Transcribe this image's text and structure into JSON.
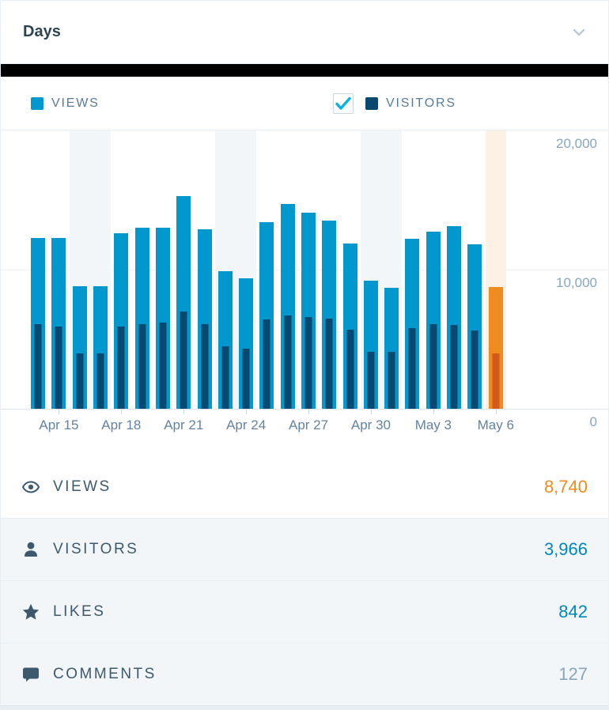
{
  "header": {
    "title": "Days"
  },
  "legend": {
    "views_label": "VIEWS",
    "visitors_label": "VISITORS",
    "visitors_checked": true
  },
  "chart_data": {
    "type": "bar",
    "title": "Days",
    "xlabel": "",
    "ylabel": "",
    "ylim": [
      0,
      20000
    ],
    "grid": true,
    "y_ticks": [
      "20,000",
      "10,000",
      "0"
    ],
    "x_tick_labels": [
      "Apr 15",
      "Apr 18",
      "Apr 21",
      "Apr 24",
      "Apr 27",
      "Apr 30",
      "May 3",
      "May 6"
    ],
    "series": [
      {
        "name": "VIEWS"
      },
      {
        "name": "VISITORS"
      }
    ],
    "days": [
      {
        "label": "Apr 14",
        "views": 12300,
        "visitors": 6100,
        "weekend": false,
        "selected": false,
        "tick": ""
      },
      {
        "label": "Apr 15",
        "views": 12300,
        "visitors": 5900,
        "weekend": false,
        "selected": false,
        "tick": "Apr 15"
      },
      {
        "label": "Apr 16",
        "views": 8800,
        "visitors": 4000,
        "weekend": true,
        "selected": false,
        "tick": ""
      },
      {
        "label": "Apr 17",
        "views": 8800,
        "visitors": 4000,
        "weekend": true,
        "selected": false,
        "tick": ""
      },
      {
        "label": "Apr 18",
        "views": 12600,
        "visitors": 5900,
        "weekend": false,
        "selected": false,
        "tick": "Apr 18"
      },
      {
        "label": "Apr 19",
        "views": 13000,
        "visitors": 6100,
        "weekend": false,
        "selected": false,
        "tick": ""
      },
      {
        "label": "Apr 20",
        "views": 13000,
        "visitors": 6200,
        "weekend": false,
        "selected": false,
        "tick": ""
      },
      {
        "label": "Apr 21",
        "views": 15300,
        "visitors": 7000,
        "weekend": false,
        "selected": false,
        "tick": "Apr 21"
      },
      {
        "label": "Apr 22",
        "views": 12900,
        "visitors": 6100,
        "weekend": false,
        "selected": false,
        "tick": ""
      },
      {
        "label": "Apr 23",
        "views": 9900,
        "visitors": 4500,
        "weekend": true,
        "selected": false,
        "tick": ""
      },
      {
        "label": "Apr 24",
        "views": 9400,
        "visitors": 4300,
        "weekend": true,
        "selected": false,
        "tick": "Apr 24"
      },
      {
        "label": "Apr 25",
        "views": 13400,
        "visitors": 6400,
        "weekend": false,
        "selected": false,
        "tick": ""
      },
      {
        "label": "Apr 26",
        "views": 14700,
        "visitors": 6700,
        "weekend": false,
        "selected": false,
        "tick": ""
      },
      {
        "label": "Apr 27",
        "views": 14100,
        "visitors": 6600,
        "weekend": false,
        "selected": false,
        "tick": "Apr 27"
      },
      {
        "label": "Apr 28",
        "views": 13500,
        "visitors": 6500,
        "weekend": false,
        "selected": false,
        "tick": ""
      },
      {
        "label": "Apr 29",
        "views": 11900,
        "visitors": 5700,
        "weekend": false,
        "selected": false,
        "tick": ""
      },
      {
        "label": "Apr 30",
        "views": 9200,
        "visitors": 4100,
        "weekend": true,
        "selected": false,
        "tick": "Apr 30"
      },
      {
        "label": "May 1",
        "views": 8700,
        "visitors": 4100,
        "weekend": true,
        "selected": false,
        "tick": ""
      },
      {
        "label": "May 2",
        "views": 12200,
        "visitors": 5800,
        "weekend": false,
        "selected": false,
        "tick": ""
      },
      {
        "label": "May 3",
        "views": 12700,
        "visitors": 6100,
        "weekend": false,
        "selected": false,
        "tick": "May 3"
      },
      {
        "label": "May 4",
        "views": 13100,
        "visitors": 6000,
        "weekend": false,
        "selected": false,
        "tick": ""
      },
      {
        "label": "May 5",
        "views": 11800,
        "visitors": 5600,
        "weekend": false,
        "selected": false,
        "tick": ""
      },
      {
        "label": "May 6",
        "views": 8740,
        "visitors": 3966,
        "weekend": false,
        "selected": true,
        "tick": "May 6"
      }
    ],
    "colors": {
      "views": "#0398cd",
      "visitors": "#07496f",
      "selected_views": "#ef8c1f",
      "selected_visitors": "#d4591f",
      "weekend_bg": "#f3f6f8",
      "selected_bg": "#fdf1e5"
    }
  },
  "summary": {
    "rows": [
      {
        "id": "views",
        "icon": "eye-icon",
        "label": "VIEWS",
        "value": "8,740",
        "value_color": "#ef8c1f",
        "active": true
      },
      {
        "id": "visitors",
        "icon": "user-icon",
        "label": "VISITORS",
        "value": "3,966",
        "value_color": "#0087be",
        "active": false
      },
      {
        "id": "likes",
        "icon": "star-icon",
        "label": "LIKES",
        "value": "842",
        "value_color": "#0087be",
        "active": false
      },
      {
        "id": "comments",
        "icon": "comment-icon",
        "label": "COMMENTS",
        "value": "127",
        "value_color": "#87a6bc",
        "active": false
      }
    ]
  }
}
